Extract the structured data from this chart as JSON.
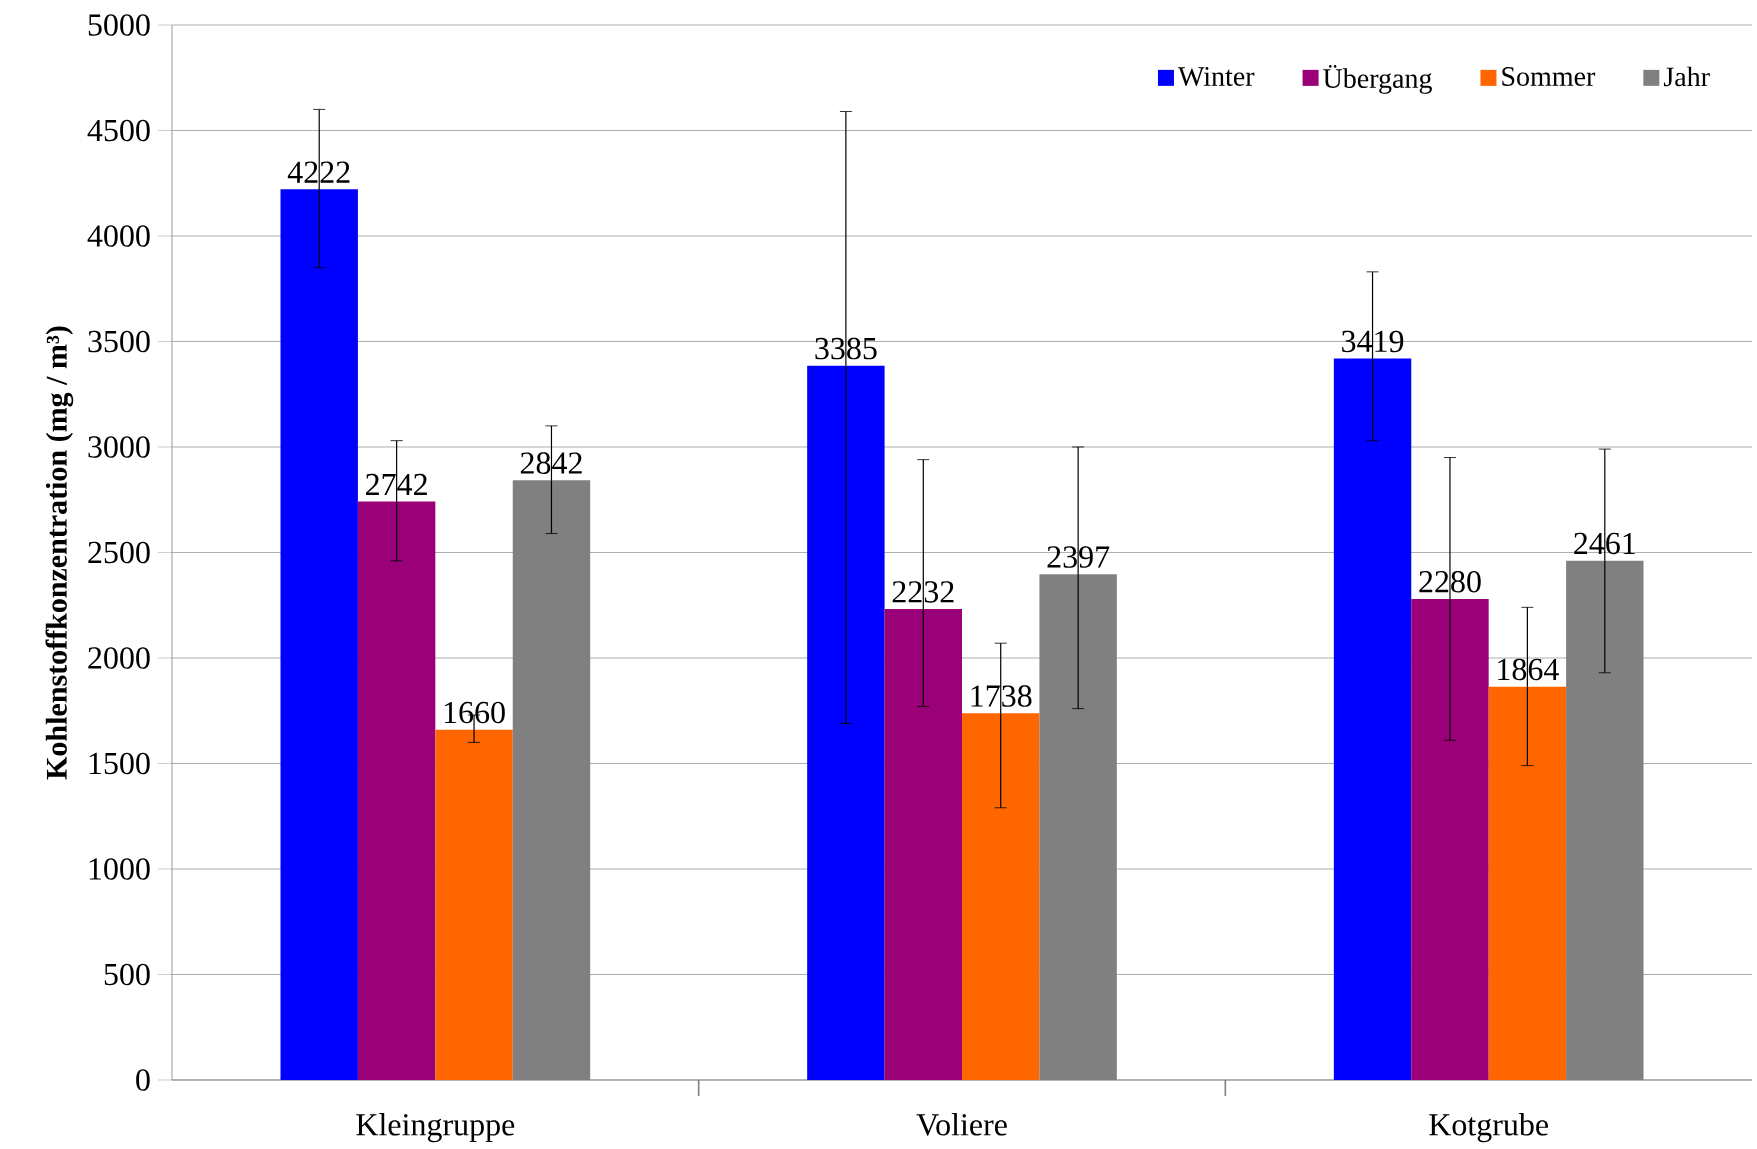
{
  "chart_data": {
    "type": "bar",
    "ylabel": "Kohlenstoffkonzentration (mg / m³)",
    "categories": [
      "Kleingruppe",
      "Voliere",
      "Kotgrube"
    ],
    "series": [
      {
        "name": "Winter",
        "color": "#0000ff",
        "values": [
          4222,
          3385,
          3419
        ],
        "errors": [
          [
            3850,
            4600
          ],
          [
            1690,
            4590
          ],
          [
            3030,
            3830
          ]
        ]
      },
      {
        "name": "Übergang",
        "color": "#9a0078",
        "values": [
          2742,
          2232,
          2280
        ],
        "errors": [
          [
            2460,
            3030
          ],
          [
            1770,
            2940
          ],
          [
            1610,
            2950
          ]
        ]
      },
      {
        "name": "Sommer",
        "color": "#ff6600",
        "values": [
          1660,
          1738,
          1864
        ],
        "errors": [
          [
            1600,
            1730
          ],
          [
            1290,
            2070
          ],
          [
            1490,
            2240
          ]
        ]
      },
      {
        "name": "Jahr",
        "color": "#808080",
        "values": [
          2842,
          2397,
          2461
        ],
        "errors": [
          [
            2590,
            3100
          ],
          [
            1760,
            3000
          ],
          [
            1930,
            2990
          ]
        ]
      }
    ],
    "ylim": [
      0,
      5000
    ],
    "yticks": [
      0,
      500,
      1000,
      1500,
      2000,
      2500,
      3000,
      3500,
      4000,
      4500,
      5000
    ],
    "grid": "y",
    "legend": "top right",
    "data_labels": true
  }
}
